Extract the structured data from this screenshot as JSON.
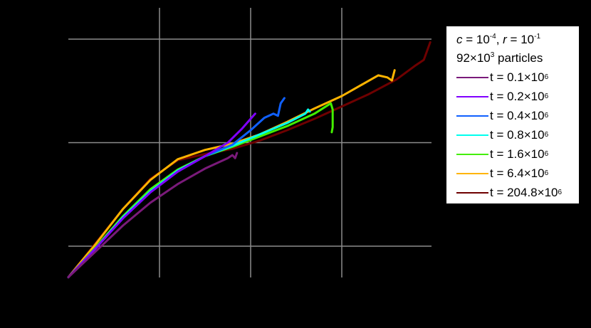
{
  "chart_data": {
    "type": "line",
    "title": "",
    "xlabel": "",
    "ylabel": "",
    "note": "Axis tick labels and axis titles are not visible (rendered black on black background). Coordinates below are in relative grid units: x gridlines at 1,2,3; y gridlines at 0,1,2.",
    "xlim": [
      0,
      3.98
    ],
    "ylim": [
      -0.3,
      2.3
    ],
    "grid": true,
    "legend_position": "outside right",
    "legend_header": [
      "c = 10^-4, r = 10^-1",
      "92×10^3 particles"
    ],
    "series": [
      {
        "name": "t = 0.1×10^6",
        "color": "#7a1a7a",
        "x": [
          0.0,
          0.3,
          0.6,
          0.9,
          1.2,
          1.5,
          1.75,
          1.8,
          1.83,
          1.85
        ],
        "y": [
          -0.3,
          -0.05,
          0.2,
          0.42,
          0.6,
          0.75,
          0.85,
          0.88,
          0.85,
          0.9
        ]
      },
      {
        "name": "t = 0.2×10^6",
        "color": "#8000ff",
        "x": [
          0.0,
          0.3,
          0.6,
          0.9,
          1.2,
          1.5,
          1.75,
          1.9,
          2.0,
          2.05
        ],
        "y": [
          -0.3,
          -0.02,
          0.27,
          0.52,
          0.72,
          0.87,
          1.0,
          1.13,
          1.23,
          1.28
        ]
      },
      {
        "name": "t = 0.4×10^6",
        "color": "#1060ff",
        "x": [
          0.0,
          0.3,
          0.6,
          0.9,
          1.2,
          1.5,
          1.8,
          2.0,
          2.15,
          2.25,
          2.3,
          2.33,
          2.37
        ],
        "y": [
          -0.3,
          -0.02,
          0.27,
          0.52,
          0.72,
          0.87,
          0.98,
          1.12,
          1.24,
          1.28,
          1.26,
          1.38,
          1.43
        ]
      },
      {
        "name": "t = 0.8×10^6",
        "color": "#00ffee",
        "x": [
          0.0,
          0.3,
          0.6,
          0.9,
          1.2,
          1.5,
          1.8,
          2.1,
          2.4,
          2.6,
          2.63,
          2.65
        ],
        "y": [
          -0.3,
          -0.02,
          0.28,
          0.53,
          0.73,
          0.87,
          0.97,
          1.08,
          1.19,
          1.28,
          1.32,
          1.3
        ]
      },
      {
        "name": "t = 1.6×10^6",
        "color": "#44ee00",
        "x": [
          0.0,
          0.3,
          0.6,
          0.9,
          1.2,
          1.5,
          1.8,
          2.1,
          2.4,
          2.7,
          2.88,
          2.9,
          2.9,
          2.89
        ],
        "y": [
          -0.3,
          -0.01,
          0.29,
          0.55,
          0.74,
          0.87,
          0.96,
          1.06,
          1.16,
          1.28,
          1.38,
          1.32,
          1.15,
          1.1
        ]
      },
      {
        "name": "t = 6.4×10^6",
        "color": "#ffb400",
        "x": [
          0.0,
          0.3,
          0.6,
          0.9,
          1.2,
          1.5,
          1.8,
          2.1,
          2.4,
          2.7,
          3.0,
          3.3,
          3.4,
          3.5,
          3.55,
          3.58
        ],
        "y": [
          -0.3,
          0.02,
          0.36,
          0.64,
          0.84,
          0.93,
          0.99,
          1.08,
          1.2,
          1.33,
          1.45,
          1.6,
          1.65,
          1.63,
          1.6,
          1.7
        ]
      },
      {
        "name": "t = 204.8×10^6",
        "color": "#6e0000",
        "x": [
          0.0,
          0.3,
          0.6,
          0.9,
          1.2,
          1.5,
          1.8,
          2.1,
          2.4,
          2.7,
          3.0,
          3.3,
          3.6,
          3.8,
          3.9,
          3.97
        ],
        "y": [
          -0.3,
          0.03,
          0.36,
          0.65,
          0.83,
          0.89,
          0.94,
          1.02,
          1.12,
          1.23,
          1.35,
          1.47,
          1.61,
          1.74,
          1.8,
          1.97
        ]
      }
    ]
  },
  "legend": {
    "c_label": "c",
    "c_eq": " = 10",
    "c_exp": "-4",
    "sep": ", ",
    "r_label": "r",
    "r_eq": " = 10",
    "r_exp": "-1",
    "particles_mant": "92×10",
    "particles_exp": "3",
    "particles_tail": " particles",
    "entries": [
      {
        "label": "t = 0.1×10",
        "exp": "6",
        "color": "#7a1a7a"
      },
      {
        "label": "t = 0.2×10",
        "exp": "6",
        "color": "#8000ff"
      },
      {
        "label": "t = 0.4×10",
        "exp": "6",
        "color": "#1060ff"
      },
      {
        "label": "t = 0.8×10",
        "exp": "6",
        "color": "#00ffee"
      },
      {
        "label": "t = 1.6×10",
        "exp": "6",
        "color": "#44ee00"
      },
      {
        "label": "t = 6.4×10",
        "exp": "6",
        "color": "#ffb400"
      },
      {
        "label": "t = 204.8×10",
        "exp": "6",
        "color": "#6e0000"
      }
    ]
  },
  "colors": {
    "background": "#000000",
    "grid": "#8c8c8c",
    "legend_bg": "#ffffff"
  }
}
